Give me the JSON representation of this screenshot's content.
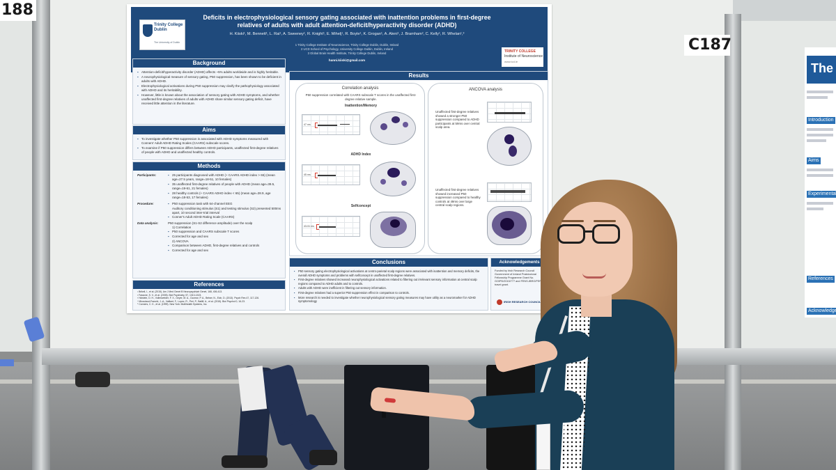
{
  "board_labels": {
    "left": "188",
    "right": "C187"
  },
  "poster": {
    "title": "Deficits in electrophysiological sensory gating associated with inattention problems in first-degree relatives of adults with adult attention-deficit/hyperactivity disorder (ADHD)",
    "authors": "H. Kiiski¹, M. Bennett¹, L. Rai¹, A. Sweeney¹, R. Knight¹, E. Mihelj¹, R. Boyle¹, K. Grogan¹, A. Aleni¹, J. Bramham², C. Kelly¹, R. Whelan¹,³",
    "affiliations": [
      "1 Trinity College Institute of Neuroscience, Trinity College Dublin, Dublin, Ireland",
      "2 UCD School of Psychology, University College Dublin, Dublin, Ireland",
      "3 Global Brain Health Institute, Trinity College Dublin, Ireland"
    ],
    "email": "hanni.kiiski@gmail.com",
    "logo_left": {
      "name": "Trinity College Dublin",
      "sub": "The University of Dublin"
    },
    "logo_right": {
      "line1": "TRINITY COLLEGE",
      "line2": "Institute of Neuroscience",
      "line3": "www.tcd.ie"
    },
    "background": {
      "heading": "Background",
      "bullets": [
        "Attention-deficit/hyperactivity disorder (ADHD) affects ~5% adults worldwide and is highly heritable.",
        "A neurophysiological measure of sensory gating, P50 suppression, has been shown to be deficient in adults with ADHD.",
        "Electrophysiological activations during P50 suppression may clarify the pathophysiology associated with ADHD and its heritability.",
        "However, little is known about the association of sensory gating with ADHD symptoms, and whether unaffected first-degree relatives of adults with ADHD share similar sensory gating deficit, have received little attention in the literature."
      ]
    },
    "aims": {
      "heading": "Aims",
      "bullets": [
        "To investigate whether P50 suppression is associated with ADHD symptoms measured with Conners' Adult ADHD Rating Scales (CAARS) subscale scores.",
        "To examine if P50 suppression differs between ADHD participants, unaffected first-degree relatives of people with ADHD and unaffected healthy controls."
      ]
    },
    "methods": {
      "heading": "Methods",
      "participants_label": "Participants:",
      "participants": [
        "25 participants diagnosed with ADHD (+ CAARS ADHD index > 65) (mean age=27.5 years, range=18-51, 10 females)",
        "35 unaffected first-degree relatives of people with ADHD (mean age=39.5, range=19-61, 21 females)",
        "28 healthy controls (+ CAARS ADHD index < 65) (mean age=28.9, age range=18-53, 17 females)"
      ],
      "procedure_label": "Procedure:",
      "procedure": [
        "P50 suppression task with 64-channel EEG",
        "Auditory conditioning stimulus (S1) and testing stimulus (S2) presented 500ms apart, 10 second inter-trial interval",
        "Conner's Adult ADHD Rating Scale (CAARS)"
      ],
      "analysis_label": "Data analysis:",
      "analysis": [
        "P50 suppression (S1-S2 difference amplitude) over the scalp",
        "1) Correlation",
        "P50 suppression and CAARS subscale T scores",
        "Corrected for age and sex",
        "2) ANCOVA",
        "Comparison between ADHD, first-degree relatives and controls",
        "Corrected for age and sex"
      ]
    },
    "references": {
      "heading": "References",
      "items": [
        "¹ Brikell, I., et al. (2015). Am J Med Genet B Neuropsychiatr Genet, 168, 406-413.",
        "² Faraone, S. V., et al. (2005). Biol Psychiatry, 57, 1313-1323.",
        "³ Holstein, D. H., Vollenweider, F. X., Geyer, M. A., Csomor, P. A., Belser, N., Eich, D. (2013). Psych Res 47, 117-126.",
        "⁴ Micoulaud-Franchi, J.-A., Vaillant, F., Lopez, R., Peri, P., Baillif, A., et al. (2015). Biol Psychol 0, 16-23.",
        "⁵ Conners, C. K., et al. (1999). New York: Multihealth Systems, Inc."
      ]
    },
    "results": {
      "heading": "Results",
      "correlation": {
        "heading": "Correlation analysis",
        "caption": "P50 suppression correlated with CAARS subscale T scores in the unaffected first-degree relative sample.",
        "labels": [
          "Inattention/Memory",
          "ADHD Index",
          "Selfconcept"
        ],
        "erp_labels": [
          "47 ms",
          "45 ms",
          "43-51 ms"
        ]
      },
      "ancova": {
        "heading": "ANCOVA analysis",
        "caption1": "Unaffected first-degree relatives showed a stronger P50 suppression compared to ADHD participants at 59ms over central scalp area.",
        "caption2": "Unaffected first-degree relatives showed increased P50 suppression compared to healthy controls at 49ms over large central scalp regions."
      }
    },
    "conclusions": {
      "heading": "Conclusions",
      "bullets": [
        "P50 sensory gating electrophysiological activations at centro-parietal scalp regions were associated with inattention and memory deficits, the overall ADHD symptoms and problems with selfconcept in unaffected first-degree relatives.",
        "First-degree relatives showed increased neurophysiological activations related to filtering out irrelevant sensory information at central scalp regions compared to ADHD adults and to controls.",
        "Adults with ADHD were inefficient in filtering out sensory information.",
        "First-degree relatives had a superior P50 suppression effect in comparison to controls.",
        "More research is needed to investigate whether neurophysiological sensory gating measures may have utility as a neuromarker for ADHD symptomology"
      ]
    },
    "acknowledgements": {
      "heading": "Acknowledgements",
      "text": "Funded by Irish Research Council Government of Ireland Postdoctoral Fellowship Programme Grant No. GOIPD/2015/777 and FENS-IBRO/PERC travel grant.",
      "logo": "IRISH RESEARCH COUNCIL"
    }
  },
  "right_poster": {
    "title": "The",
    "items": [
      "Introduction",
      "Aims",
      "Experimental",
      "References",
      "Acknowledgements"
    ]
  },
  "colors": {
    "poster_navy": "#1f4a7c",
    "jacket": "#1a3f56",
    "hair": "#9b7046"
  }
}
